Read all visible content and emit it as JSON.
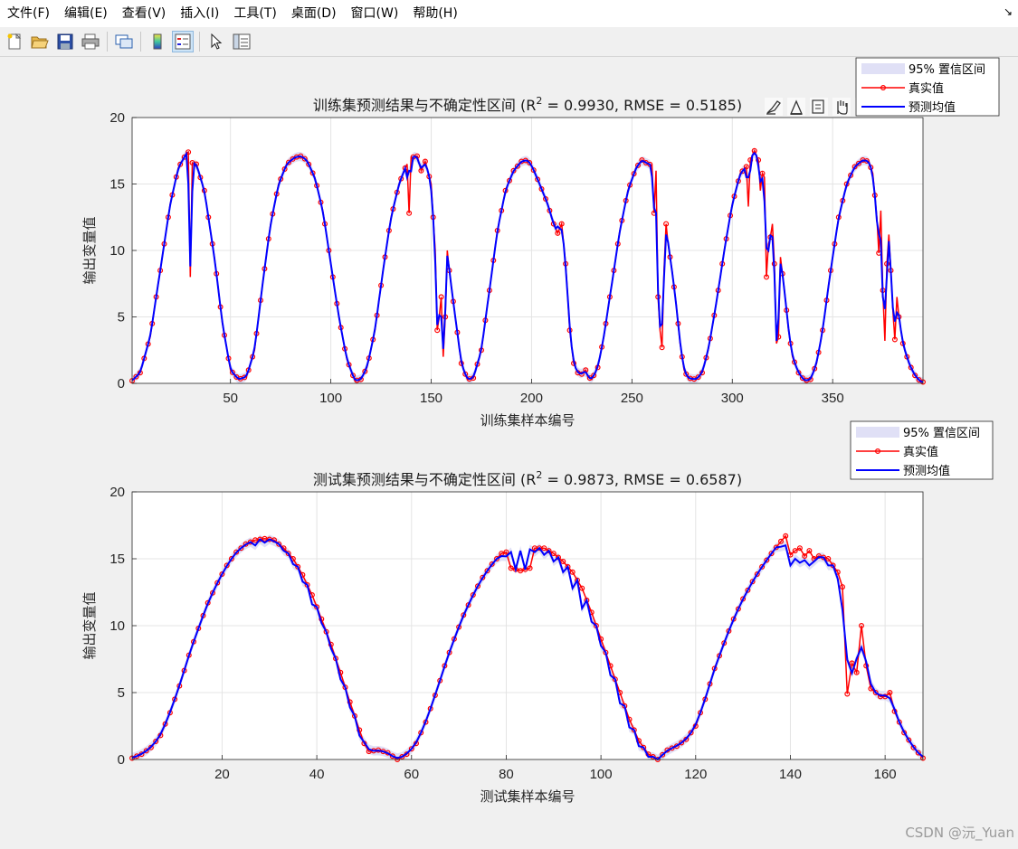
{
  "menu": [
    "文件(F)",
    "编辑(E)",
    "查看(V)",
    "插入(I)",
    "工具(T)",
    "桌面(D)",
    "窗口(W)",
    "帮助(H)"
  ],
  "toolbar_icons": [
    "new-figure-icon",
    "open-file-icon",
    "save-icon",
    "print-icon",
    "link-plot-icon",
    "colorbar-icon",
    "legend-icon",
    "pointer-icon",
    "property-editor-icon"
  ],
  "axes_toolbar_icons": [
    "brush-icon",
    "data-tips-icon",
    "export-icon",
    "pan-icon",
    "zoom-in-icon",
    "zoom-out-icon",
    "home-icon"
  ],
  "watermark": "CSDN @沅_Yuan",
  "colors": {
    "true": "#ff0000",
    "pred": "#0000ff",
    "ci": "#e0e0f6"
  },
  "chart_data": [
    {
      "type": "line",
      "title": "训练集预测结果与不确定性区间 (R² = 0.9930, RMSE = 0.5185)",
      "title_main": "训练集预测结果与不确定性区间 (R",
      "title_sup": "2",
      "title_rest": " = 0.9930, RMSE = 0.5185)",
      "xlabel": "训练集样本编号",
      "ylabel": "输出变量值",
      "xlim": [
        1,
        395
      ],
      "ylim": [
        0,
        20
      ],
      "xticks": [
        50,
        100,
        150,
        200,
        250,
        300,
        350
      ],
      "yticks": [
        0,
        5,
        10,
        15,
        20
      ],
      "grid": true,
      "legend_position": "top-right",
      "legend": [
        "95% 置信区间",
        "真实值",
        "预测均值"
      ],
      "segments": [
        [
          1,
          0.2
        ],
        [
          5,
          0.8
        ],
        [
          10,
          3.5
        ],
        [
          15,
          8.5
        ],
        [
          20,
          13.5
        ],
        [
          24,
          16.2
        ],
        [
          28,
          17.3
        ],
        [
          29,
          17.4
        ],
        [
          30,
          8.0
        ],
        [
          31,
          16.6
        ],
        [
          33,
          16.5
        ],
        [
          37,
          14.5
        ],
        [
          42,
          9.5
        ],
        [
          46,
          4.5
        ],
        [
          50,
          1.0
        ],
        [
          54,
          0.3
        ],
        [
          58,
          0.5
        ],
        [
          62,
          2.5
        ],
        [
          66,
          7.5
        ],
        [
          70,
          12.0
        ],
        [
          74,
          15.0
        ],
        [
          78,
          16.5
        ],
        [
          82,
          17.0
        ],
        [
          85,
          17.1
        ],
        [
          88,
          16.8
        ],
        [
          92,
          15.5
        ],
        [
          96,
          13.0
        ],
        [
          100,
          9.0
        ],
        [
          104,
          5.0
        ],
        [
          108,
          1.8
        ],
        [
          112,
          0.2
        ],
        [
          115,
          0.3
        ],
        [
          118,
          1.2
        ],
        [
          122,
          4.0
        ],
        [
          126,
          8.5
        ],
        [
          130,
          12.5
        ],
        [
          134,
          15.0
        ],
        [
          137,
          16.2
        ],
        [
          138,
          16.5
        ],
        [
          139,
          12.8
        ],
        [
          140,
          17.0
        ],
        [
          143,
          17.1
        ],
        [
          145,
          16.0
        ],
        [
          147,
          16.7
        ],
        [
          150,
          15.0
        ],
        [
          152,
          10.0
        ],
        [
          153,
          4.0
        ],
        [
          154,
          5.0
        ],
        [
          155,
          6.5
        ],
        [
          156,
          2.0
        ],
        [
          157,
          5.0
        ],
        [
          158,
          10.0
        ],
        [
          159,
          8.5
        ],
        [
          162,
          5.0
        ],
        [
          165,
          1.5
        ],
        [
          168,
          0.3
        ],
        [
          171,
          0.4
        ],
        [
          175,
          2.5
        ],
        [
          179,
          7.0
        ],
        [
          183,
          11.5
        ],
        [
          187,
          14.5
        ],
        [
          191,
          16.0
        ],
        [
          195,
          16.7
        ],
        [
          198,
          16.8
        ],
        [
          200,
          16.4
        ],
        [
          204,
          15.0
        ],
        [
          208,
          13.5
        ],
        [
          211,
          12.0
        ],
        [
          213,
          11.3
        ],
        [
          215,
          12.0
        ],
        [
          217,
          9.0
        ],
        [
          219,
          4.0
        ],
        [
          221,
          1.5
        ],
        [
          223,
          0.8
        ],
        [
          225,
          0.7
        ],
        [
          227,
          1.0
        ],
        [
          228,
          0.5
        ],
        [
          230,
          0.3
        ],
        [
          233,
          1.2
        ],
        [
          236,
          3.5
        ],
        [
          240,
          7.5
        ],
        [
          244,
          11.5
        ],
        [
          248,
          14.5
        ],
        [
          252,
          16.2
        ],
        [
          255,
          16.8
        ],
        [
          257,
          16.6
        ],
        [
          260,
          16.4
        ],
        [
          261,
          12.8
        ],
        [
          262,
          16.0
        ],
        [
          263,
          6.5
        ],
        [
          264,
          4.0
        ],
        [
          265,
          2.7
        ],
        [
          266,
          8.5
        ],
        [
          267,
          12.0
        ],
        [
          268,
          10.5
        ],
        [
          270,
          8.5
        ],
        [
          272,
          6.0
        ],
        [
          274,
          3.0
        ],
        [
          276,
          1.0
        ],
        [
          278,
          0.4
        ],
        [
          282,
          0.3
        ],
        [
          285,
          0.8
        ],
        [
          288,
          2.5
        ],
        [
          292,
          6.0
        ],
        [
          296,
          10.0
        ],
        [
          300,
          13.5
        ],
        [
          304,
          15.8
        ],
        [
          307,
          16.3
        ],
        [
          308,
          13.3
        ],
        [
          309,
          16.8
        ],
        [
          311,
          17.5
        ],
        [
          313,
          16.8
        ],
        [
          314,
          14.5
        ],
        [
          315,
          15.8
        ],
        [
          316,
          15.5
        ],
        [
          317,
          8.0
        ],
        [
          318,
          10.5
        ],
        [
          319,
          11.0
        ],
        [
          320,
          12.0
        ],
        [
          321,
          9.0
        ],
        [
          322,
          3.0
        ],
        [
          323,
          3.5
        ],
        [
          324,
          9.5
        ],
        [
          326,
          7.0
        ],
        [
          328,
          4.0
        ],
        [
          330,
          2.0
        ],
        [
          333,
          0.8
        ],
        [
          336,
          0.2
        ],
        [
          339,
          0.3
        ],
        [
          342,
          1.5
        ],
        [
          345,
          4.0
        ],
        [
          349,
          8.5
        ],
        [
          353,
          12.5
        ],
        [
          357,
          15.0
        ],
        [
          361,
          16.3
        ],
        [
          365,
          16.8
        ],
        [
          368,
          16.7
        ],
        [
          370,
          15.8
        ],
        [
          372,
          12.5
        ],
        [
          373,
          9.8
        ],
        [
          374,
          13.0
        ],
        [
          375,
          7.0
        ],
        [
          376,
          3.2
        ],
        [
          377,
          9.0
        ],
        [
          378,
          11.2
        ],
        [
          379,
          8.5
        ],
        [
          380,
          5.5
        ],
        [
          381,
          3.3
        ],
        [
          382,
          6.5
        ],
        [
          383,
          5.0
        ],
        [
          385,
          3.0
        ],
        [
          388,
          1.5
        ],
        [
          391,
          0.6
        ],
        [
          394,
          0.1
        ]
      ],
      "pred_offsets": [
        [
          30,
          8.8
        ],
        [
          139,
          16.0
        ],
        [
          153,
          4.4
        ],
        [
          156,
          2.6
        ],
        [
          158,
          9.6
        ],
        [
          213,
          11.8
        ],
        [
          261,
          13.2
        ],
        [
          263,
          7.0
        ],
        [
          267,
          11.2
        ],
        [
          308,
          15.5
        ],
        [
          314,
          15.2
        ],
        [
          317,
          10.2
        ],
        [
          322,
          3.2
        ],
        [
          324,
          9.0
        ],
        [
          375,
          6.5
        ],
        [
          378,
          10.7
        ]
      ],
      "markers_every": 1
    },
    {
      "type": "line",
      "title": "测试集预测结果与不确定性区间 (R² = 0.9873, RMSE = 0.6587)",
      "title_main": "测试集预测结果与不确定性区间 (R",
      "title_sup": "2",
      "title_rest": " = 0.9873, RMSE = 0.6587)",
      "xlabel": "测试集样本编号",
      "ylabel": "输出变量值",
      "xlim": [
        1,
        168
      ],
      "ylim": [
        0,
        20
      ],
      "xticks": [
        20,
        40,
        60,
        80,
        100,
        120,
        140,
        160
      ],
      "yticks": [
        0,
        5,
        10,
        15,
        20
      ],
      "grid": true,
      "legend_position": "top-right",
      "legend": [
        "95% 置信区间",
        "真实值",
        "预测均值"
      ],
      "segments": [
        [
          1,
          0.1
        ],
        [
          3,
          0.4
        ],
        [
          5,
          0.9
        ],
        [
          7,
          1.8
        ],
        [
          9,
          3.5
        ],
        [
          11,
          5.5
        ],
        [
          13,
          7.8
        ],
        [
          15,
          9.8
        ],
        [
          17,
          11.7
        ],
        [
          19,
          13.2
        ],
        [
          21,
          14.5
        ],
        [
          23,
          15.5
        ],
        [
          25,
          16.1
        ],
        [
          27,
          16.4
        ],
        [
          29,
          16.5
        ],
        [
          31,
          16.4
        ],
        [
          33,
          15.8
        ],
        [
          35,
          15.0
        ],
        [
          37,
          13.8
        ],
        [
          39,
          12.3
        ],
        [
          41,
          10.5
        ],
        [
          43,
          8.6
        ],
        [
          45,
          6.5
        ],
        [
          47,
          4.3
        ],
        [
          49,
          2.2
        ],
        [
          50,
          1.2
        ],
        [
          51,
          0.6
        ],
        [
          53,
          0.7
        ],
        [
          55,
          0.5
        ],
        [
          57,
          0.0
        ],
        [
          59,
          0.4
        ],
        [
          61,
          1.2
        ],
        [
          63,
          2.8
        ],
        [
          65,
          4.8
        ],
        [
          67,
          7.0
        ],
        [
          69,
          9.0
        ],
        [
          71,
          10.8
        ],
        [
          73,
          12.3
        ],
        [
          75,
          13.6
        ],
        [
          77,
          14.6
        ],
        [
          79,
          15.4
        ],
        [
          80,
          15.5
        ],
        [
          81,
          14.3
        ],
        [
          83,
          14.1
        ],
        [
          85,
          14.3
        ],
        [
          86,
          15.8
        ],
        [
          88,
          15.8
        ],
        [
          90,
          15.4
        ],
        [
          92,
          14.8
        ],
        [
          94,
          14.0
        ],
        [
          96,
          12.8
        ],
        [
          98,
          11.0
        ],
        [
          100,
          9.0
        ],
        [
          102,
          7.0
        ],
        [
          104,
          5.0
        ],
        [
          106,
          3.0
        ],
        [
          108,
          1.4
        ],
        [
          110,
          0.4
        ],
        [
          112,
          0.0
        ],
        [
          114,
          0.7
        ],
        [
          116,
          1.0
        ],
        [
          118,
          1.5
        ],
        [
          120,
          2.5
        ],
        [
          122,
          4.5
        ],
        [
          124,
          6.8
        ],
        [
          126,
          8.7
        ],
        [
          128,
          10.5
        ],
        [
          130,
          12.0
        ],
        [
          132,
          13.3
        ],
        [
          134,
          14.4
        ],
        [
          136,
          15.4
        ],
        [
          138,
          16.3
        ],
        [
          139,
          16.7
        ],
        [
          140,
          15.3
        ],
        [
          141,
          15.6
        ],
        [
          142,
          15.8
        ],
        [
          143,
          15.2
        ],
        [
          144,
          15.6
        ],
        [
          145,
          15.0
        ],
        [
          146,
          15.2
        ],
        [
          148,
          15.0
        ],
        [
          150,
          14.0
        ],
        [
          151,
          12.9
        ],
        [
          152,
          4.9
        ],
        [
          153,
          7.2
        ],
        [
          154,
          6.5
        ],
        [
          155,
          10.0
        ],
        [
          156,
          7.0
        ],
        [
          157,
          5.3
        ],
        [
          158,
          5.0
        ],
        [
          159,
          4.7
        ],
        [
          160,
          4.7
        ],
        [
          161,
          5.0
        ],
        [
          162,
          3.6
        ],
        [
          164,
          2.0
        ],
        [
          166,
          0.9
        ],
        [
          168,
          0.1
        ]
      ],
      "pred_offsets": [
        [
          27,
          16.0
        ],
        [
          29,
          16.2
        ],
        [
          31,
          16.3
        ],
        [
          33,
          15.6
        ],
        [
          35,
          14.6
        ],
        [
          37,
          13.3
        ],
        [
          39,
          11.6
        ],
        [
          41,
          10.2
        ],
        [
          43,
          8.3
        ],
        [
          45,
          6.0
        ],
        [
          47,
          3.9
        ],
        [
          49,
          1.8
        ],
        [
          79,
          15.2
        ],
        [
          81,
          15.5
        ],
        [
          83,
          15.6
        ],
        [
          85,
          15.7
        ],
        [
          86,
          15.5
        ],
        [
          88,
          15.3
        ],
        [
          90,
          14.8
        ],
        [
          92,
          14.0
        ],
        [
          94,
          12.8
        ],
        [
          96,
          11.3
        ],
        [
          98,
          10.3
        ],
        [
          100,
          8.5
        ],
        [
          102,
          6.3
        ],
        [
          104,
          4.2
        ],
        [
          106,
          2.4
        ],
        [
          108,
          1.0
        ],
        [
          110,
          0.2
        ],
        [
          112,
          0.0
        ],
        [
          138,
          15.9
        ],
        [
          139,
          16.0
        ],
        [
          140,
          14.5
        ],
        [
          141,
          15.0
        ],
        [
          142,
          14.7
        ],
        [
          143,
          14.9
        ],
        [
          144,
          14.5
        ],
        [
          145,
          14.8
        ],
        [
          148,
          14.5
        ],
        [
          150,
          13.5
        ]
      ],
      "markers_every": 1
    }
  ]
}
